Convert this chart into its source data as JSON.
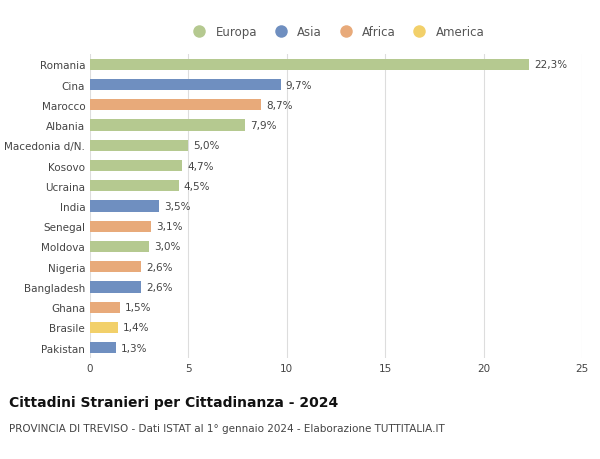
{
  "countries": [
    "Romania",
    "Cina",
    "Marocco",
    "Albania",
    "Macedonia d/N.",
    "Kosovo",
    "Ucraina",
    "India",
    "Senegal",
    "Moldova",
    "Nigeria",
    "Bangladesh",
    "Ghana",
    "Brasile",
    "Pakistan"
  ],
  "values": [
    22.3,
    9.7,
    8.7,
    7.9,
    5.0,
    4.7,
    4.5,
    3.5,
    3.1,
    3.0,
    2.6,
    2.6,
    1.5,
    1.4,
    1.3
  ],
  "labels": [
    "22,3%",
    "9,7%",
    "8,7%",
    "7,9%",
    "5,0%",
    "4,7%",
    "4,5%",
    "3,5%",
    "3,1%",
    "3,0%",
    "2,6%",
    "2,6%",
    "1,5%",
    "1,4%",
    "1,3%"
  ],
  "continents": [
    "Europa",
    "Asia",
    "Africa",
    "Europa",
    "Europa",
    "Europa",
    "Europa",
    "Asia",
    "Africa",
    "Europa",
    "Africa",
    "Asia",
    "Africa",
    "America",
    "Asia"
  ],
  "colors": {
    "Europa": "#b5c990",
    "Asia": "#6f8fc0",
    "Africa": "#e8aa7a",
    "America": "#f2d06a"
  },
  "legend_order": [
    "Europa",
    "Asia",
    "Africa",
    "America"
  ],
  "title": "Cittadini Stranieri per Cittadinanza - 2024",
  "subtitle": "PROVINCIA DI TREVISO - Dati ISTAT al 1° gennaio 2024 - Elaborazione TUTTITALIA.IT",
  "xlim": [
    0,
    25
  ],
  "xticks": [
    0,
    5,
    10,
    15,
    20,
    25
  ],
  "background_color": "#ffffff",
  "grid_color": "#dddddd",
  "bar_height": 0.55,
  "title_fontsize": 10,
  "subtitle_fontsize": 7.5,
  "tick_fontsize": 7.5,
  "label_fontsize": 7.5,
  "legend_fontsize": 8.5
}
